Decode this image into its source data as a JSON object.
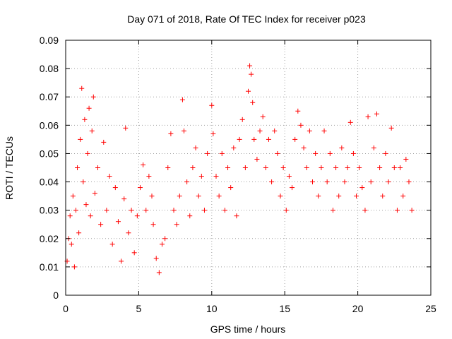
{
  "chart_data": {
    "type": "scatter",
    "title": "Day 071 of 2018, Rate Of TEC Index for receiver p023",
    "xlabel": "GPS time / hours",
    "ylabel": "ROTI / TECUs",
    "xlim": [
      0,
      25
    ],
    "ylim": [
      0,
      0.09
    ],
    "xticks": [
      "0",
      "5",
      "10",
      "15",
      "20",
      "25"
    ],
    "yticks": [
      "0",
      "0.01",
      "0.02",
      "0.03",
      "0.04",
      "0.05",
      "0.06",
      "0.07",
      "0.08",
      "0.09"
    ],
    "grid": true,
    "marker": "+",
    "color": "#ff0000",
    "points": [
      [
        0.1,
        0.012
      ],
      [
        0.2,
        0.02
      ],
      [
        0.3,
        0.028
      ],
      [
        0.4,
        0.018
      ],
      [
        0.5,
        0.035
      ],
      [
        0.6,
        0.01
      ],
      [
        0.7,
        0.03
      ],
      [
        0.8,
        0.045
      ],
      [
        0.9,
        0.022
      ],
      [
        1.0,
        0.055
      ],
      [
        1.1,
        0.073
      ],
      [
        1.2,
        0.04
      ],
      [
        1.3,
        0.062
      ],
      [
        1.4,
        0.032
      ],
      [
        1.5,
        0.05
      ],
      [
        1.6,
        0.066
      ],
      [
        1.7,
        0.028
      ],
      [
        1.8,
        0.058
      ],
      [
        1.9,
        0.07
      ],
      [
        2.0,
        0.036
      ],
      [
        2.2,
        0.045
      ],
      [
        2.4,
        0.025
      ],
      [
        2.6,
        0.054
      ],
      [
        2.8,
        0.03
      ],
      [
        3.0,
        0.042
      ],
      [
        3.2,
        0.018
      ],
      [
        3.4,
        0.038
      ],
      [
        3.6,
        0.026
      ],
      [
        3.8,
        0.012
      ],
      [
        4.0,
        0.034
      ],
      [
        4.1,
        0.059
      ],
      [
        4.3,
        0.022
      ],
      [
        4.5,
        0.03
      ],
      [
        4.7,
        0.015
      ],
      [
        4.9,
        0.028
      ],
      [
        5.1,
        0.038
      ],
      [
        5.3,
        0.046
      ],
      [
        5.5,
        0.03
      ],
      [
        5.7,
        0.042
      ],
      [
        5.9,
        0.035
      ],
      [
        6.0,
        0.025
      ],
      [
        6.2,
        0.013
      ],
      [
        6.4,
        0.008
      ],
      [
        6.6,
        0.018
      ],
      [
        6.8,
        0.02
      ],
      [
        7.0,
        0.045
      ],
      [
        7.2,
        0.057
      ],
      [
        7.4,
        0.03
      ],
      [
        7.6,
        0.025
      ],
      [
        7.8,
        0.035
      ],
      [
        8.0,
        0.069
      ],
      [
        8.1,
        0.058
      ],
      [
        8.3,
        0.04
      ],
      [
        8.5,
        0.028
      ],
      [
        8.7,
        0.045
      ],
      [
        8.9,
        0.052
      ],
      [
        9.1,
        0.035
      ],
      [
        9.3,
        0.042
      ],
      [
        9.5,
        0.03
      ],
      [
        9.7,
        0.05
      ],
      [
        10.0,
        0.067
      ],
      [
        10.1,
        0.057
      ],
      [
        10.3,
        0.042
      ],
      [
        10.5,
        0.035
      ],
      [
        10.7,
        0.05
      ],
      [
        10.9,
        0.03
      ],
      [
        11.1,
        0.045
      ],
      [
        11.3,
        0.038
      ],
      [
        11.5,
        0.052
      ],
      [
        11.7,
        0.028
      ],
      [
        11.9,
        0.055
      ],
      [
        12.1,
        0.062
      ],
      [
        12.3,
        0.045
      ],
      [
        12.5,
        0.072
      ],
      [
        12.6,
        0.081
      ],
      [
        12.7,
        0.078
      ],
      [
        12.8,
        0.068
      ],
      [
        12.9,
        0.055
      ],
      [
        13.1,
        0.048
      ],
      [
        13.3,
        0.058
      ],
      [
        13.5,
        0.063
      ],
      [
        13.7,
        0.045
      ],
      [
        13.9,
        0.055
      ],
      [
        14.1,
        0.04
      ],
      [
        14.3,
        0.058
      ],
      [
        14.5,
        0.05
      ],
      [
        14.7,
        0.035
      ],
      [
        14.9,
        0.045
      ],
      [
        15.1,
        0.03
      ],
      [
        15.3,
        0.042
      ],
      [
        15.5,
        0.038
      ],
      [
        15.7,
        0.055
      ],
      [
        15.9,
        0.065
      ],
      [
        16.1,
        0.06
      ],
      [
        16.3,
        0.052
      ],
      [
        16.5,
        0.045
      ],
      [
        16.7,
        0.058
      ],
      [
        16.9,
        0.04
      ],
      [
        17.1,
        0.05
      ],
      [
        17.3,
        0.035
      ],
      [
        17.5,
        0.045
      ],
      [
        17.7,
        0.058
      ],
      [
        17.9,
        0.04
      ],
      [
        18.1,
        0.05
      ],
      [
        18.3,
        0.03
      ],
      [
        18.5,
        0.045
      ],
      [
        18.7,
        0.035
      ],
      [
        18.9,
        0.052
      ],
      [
        19.1,
        0.04
      ],
      [
        19.3,
        0.045
      ],
      [
        19.5,
        0.061
      ],
      [
        19.7,
        0.05
      ],
      [
        19.9,
        0.035
      ],
      [
        20.1,
        0.045
      ],
      [
        20.3,
        0.038
      ],
      [
        20.5,
        0.03
      ],
      [
        20.7,
        0.063
      ],
      [
        20.9,
        0.04
      ],
      [
        21.1,
        0.052
      ],
      [
        21.3,
        0.064
      ],
      [
        21.5,
        0.045
      ],
      [
        21.7,
        0.035
      ],
      [
        21.9,
        0.05
      ],
      [
        22.1,
        0.04
      ],
      [
        22.3,
        0.059
      ],
      [
        22.5,
        0.045
      ],
      [
        22.7,
        0.03
      ],
      [
        22.9,
        0.045
      ],
      [
        23.1,
        0.035
      ],
      [
        23.3,
        0.048
      ],
      [
        23.5,
        0.04
      ],
      [
        23.7,
        0.03
      ]
    ]
  }
}
